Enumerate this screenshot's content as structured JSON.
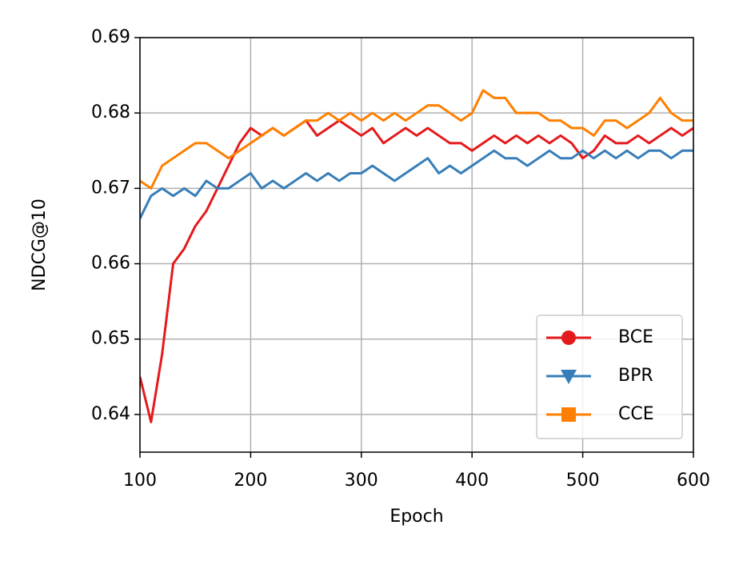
{
  "chart_data": {
    "type": "line",
    "x_label": "Epoch",
    "y_label": "NDCG@10",
    "x": [
      100,
      110,
      120,
      130,
      140,
      150,
      160,
      170,
      180,
      190,
      200,
      210,
      220,
      230,
      240,
      250,
      260,
      270,
      280,
      290,
      300,
      310,
      320,
      330,
      340,
      350,
      360,
      370,
      380,
      390,
      400,
      410,
      420,
      430,
      440,
      450,
      460,
      470,
      480,
      490,
      500,
      510,
      520,
      530,
      540,
      550,
      560,
      570,
      580,
      590,
      600
    ],
    "series": [
      {
        "name": "BCE",
        "color": "#e41a1c",
        "marker": "circle",
        "values": [
          0.645,
          0.639,
          0.648,
          0.66,
          0.662,
          0.665,
          0.667,
          0.67,
          0.673,
          0.676,
          0.678,
          0.677,
          0.678,
          0.677,
          0.678,
          0.679,
          0.677,
          0.678,
          0.679,
          0.678,
          0.677,
          0.678,
          0.676,
          0.677,
          0.678,
          0.677,
          0.678,
          0.677,
          0.676,
          0.676,
          0.675,
          0.676,
          0.677,
          0.676,
          0.677,
          0.676,
          0.677,
          0.676,
          0.677,
          0.676,
          0.674,
          0.675,
          0.677,
          0.676,
          0.676,
          0.677,
          0.676,
          0.677,
          0.678,
          0.677,
          0.678
        ]
      },
      {
        "name": "BPR",
        "color": "#377eb8",
        "marker": "triangle-down",
        "values": [
          0.666,
          0.669,
          0.67,
          0.669,
          0.67,
          0.669,
          0.671,
          0.67,
          0.67,
          0.671,
          0.672,
          0.67,
          0.671,
          0.67,
          0.671,
          0.672,
          0.671,
          0.672,
          0.671,
          0.672,
          0.672,
          0.673,
          0.672,
          0.671,
          0.672,
          0.673,
          0.674,
          0.672,
          0.673,
          0.672,
          0.673,
          0.674,
          0.675,
          0.674,
          0.674,
          0.673,
          0.674,
          0.675,
          0.674,
          0.674,
          0.675,
          0.674,
          0.675,
          0.674,
          0.675,
          0.674,
          0.675,
          0.675,
          0.674,
          0.675,
          0.675
        ]
      },
      {
        "name": "CCE",
        "color": "#ff7f00",
        "marker": "square",
        "values": [
          0.671,
          0.67,
          0.673,
          0.674,
          0.675,
          0.676,
          0.676,
          0.675,
          0.674,
          0.675,
          0.676,
          0.677,
          0.678,
          0.677,
          0.678,
          0.679,
          0.679,
          0.68,
          0.679,
          0.68,
          0.679,
          0.68,
          0.679,
          0.68,
          0.679,
          0.68,
          0.681,
          0.681,
          0.68,
          0.679,
          0.68,
          0.683,
          0.682,
          0.682,
          0.68,
          0.68,
          0.68,
          0.679,
          0.679,
          0.678,
          0.678,
          0.677,
          0.679,
          0.679,
          0.678,
          0.679,
          0.68,
          0.682,
          0.68,
          0.679,
          0.679
        ]
      }
    ],
    "xlim": [
      100,
      600
    ],
    "ylim": [
      0.635,
      0.69
    ],
    "xticks": [
      100,
      200,
      300,
      400,
      500,
      600
    ],
    "yticks": [
      0.64,
      0.65,
      0.66,
      0.67,
      0.68,
      0.69
    ],
    "grid": true,
    "legend": "lower right"
  }
}
